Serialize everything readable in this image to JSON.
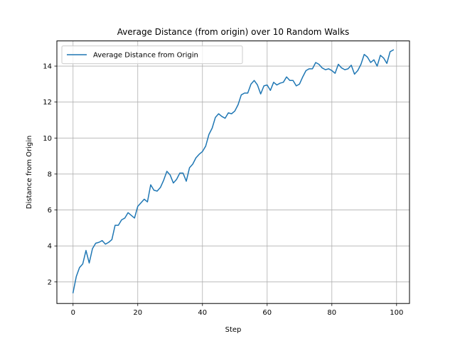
{
  "chart_data": {
    "type": "line",
    "title": "Average Distance (from origin) over 10 Random Walks",
    "xlabel": "Step",
    "ylabel": "Distance from Origin",
    "xlim": [
      -5,
      104
    ],
    "ylim": [
      0.8,
      15.4
    ],
    "xticks": [
      0,
      20,
      40,
      60,
      80,
      100
    ],
    "yticks": [
      2,
      4,
      6,
      8,
      10,
      12,
      14
    ],
    "grid": true,
    "legend_position": "upper-left",
    "series": [
      {
        "name": "Average Distance from Origin",
        "color": "#1f77b4",
        "x": [
          0,
          1,
          2,
          3,
          4,
          5,
          6,
          7,
          8,
          9,
          10,
          11,
          12,
          13,
          14,
          15,
          16,
          17,
          18,
          19,
          20,
          21,
          22,
          23,
          24,
          25,
          26,
          27,
          28,
          29,
          30,
          31,
          32,
          33,
          34,
          35,
          36,
          37,
          38,
          39,
          40,
          41,
          42,
          43,
          44,
          45,
          46,
          47,
          48,
          49,
          50,
          51,
          52,
          53,
          54,
          55,
          56,
          57,
          58,
          59,
          60,
          61,
          62,
          63,
          64,
          65,
          66,
          67,
          68,
          69,
          70,
          71,
          72,
          73,
          74,
          75,
          76,
          77,
          78,
          79,
          80,
          81,
          82,
          83,
          84,
          85,
          86,
          87,
          88,
          89,
          90,
          91,
          92,
          93,
          94,
          95,
          96,
          97,
          98,
          99
        ],
        "values": [
          1.4,
          2.3,
          2.8,
          3.0,
          3.75,
          3.05,
          3.85,
          4.15,
          4.2,
          4.3,
          4.1,
          4.2,
          4.35,
          5.15,
          5.15,
          5.45,
          5.55,
          5.85,
          5.7,
          5.55,
          6.2,
          6.4,
          6.6,
          6.45,
          7.4,
          7.1,
          7.05,
          7.25,
          7.65,
          8.15,
          7.95,
          7.5,
          7.7,
          8.05,
          8.05,
          7.6,
          8.35,
          8.55,
          8.9,
          9.1,
          9.25,
          9.55,
          10.2,
          10.55,
          11.15,
          11.35,
          11.2,
          11.1,
          11.4,
          11.35,
          11.5,
          11.85,
          12.4,
          12.5,
          12.5,
          13.0,
          13.2,
          12.95,
          12.45,
          12.9,
          12.95,
          12.65,
          13.1,
          12.95,
          13.05,
          13.1,
          13.4,
          13.2,
          13.2,
          12.9,
          13.0,
          13.4,
          13.75,
          13.85,
          13.85,
          14.2,
          14.1,
          13.9,
          13.8,
          13.85,
          13.75,
          13.6,
          14.1,
          13.9,
          13.8,
          13.85,
          14.05,
          13.55,
          13.75,
          14.1,
          14.65,
          14.5,
          14.2,
          14.35,
          14.0,
          14.6,
          14.45,
          14.15,
          14.8,
          14.9
        ]
      }
    ]
  }
}
